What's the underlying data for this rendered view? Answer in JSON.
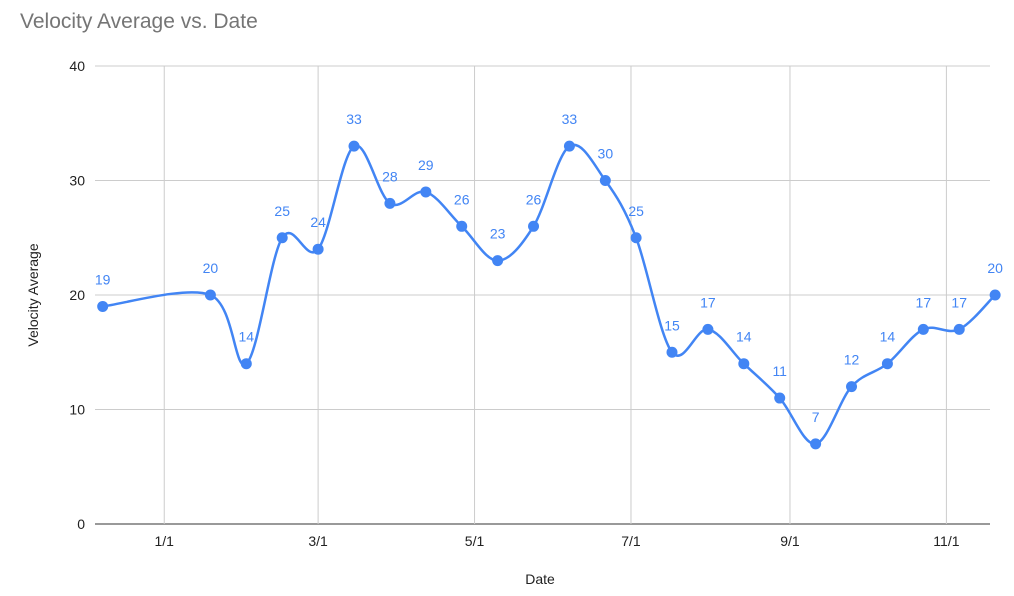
{
  "chart_data": {
    "type": "line",
    "title": "Velocity Average vs. Date",
    "xlabel": "Date",
    "ylabel": "Velocity Average",
    "ylim": [
      0,
      40
    ],
    "y_ticks": [
      0,
      10,
      20,
      30,
      40
    ],
    "x_ticks": [
      {
        "date": "2020-01-01",
        "label": "1/1"
      },
      {
        "date": "2020-03-01",
        "label": "3/1"
      },
      {
        "date": "2020-05-01",
        "label": "5/1"
      },
      {
        "date": "2020-07-01",
        "label": "7/1"
      },
      {
        "date": "2020-09-01",
        "label": "9/1"
      },
      {
        "date": "2020-11-01",
        "label": "11/1"
      }
    ],
    "x_range": [
      "2019-12-05",
      "2020-11-18"
    ],
    "grid": true,
    "legend": "none",
    "series": [
      {
        "color": "#4285f4",
        "smooth": true,
        "data_labels": true,
        "points": [
          {
            "x": "2019-12-08",
            "y": 19
          },
          {
            "x": "2020-01-19",
            "y": 20
          },
          {
            "x": "2020-02-02",
            "y": 14
          },
          {
            "x": "2020-02-16",
            "y": 25
          },
          {
            "x": "2020-03-01",
            "y": 24
          },
          {
            "x": "2020-03-15",
            "y": 33
          },
          {
            "x": "2020-03-29",
            "y": 28
          },
          {
            "x": "2020-04-12",
            "y": 29
          },
          {
            "x": "2020-04-26",
            "y": 26
          },
          {
            "x": "2020-05-10",
            "y": 23
          },
          {
            "x": "2020-05-24",
            "y": 26
          },
          {
            "x": "2020-06-07",
            "y": 33
          },
          {
            "x": "2020-06-21",
            "y": 30
          },
          {
            "x": "2020-07-03",
            "y": 25
          },
          {
            "x": "2020-07-17",
            "y": 15
          },
          {
            "x": "2020-07-31",
            "y": 17
          },
          {
            "x": "2020-08-14",
            "y": 14
          },
          {
            "x": "2020-08-28",
            "y": 11
          },
          {
            "x": "2020-09-11",
            "y": 7
          },
          {
            "x": "2020-09-25",
            "y": 12
          },
          {
            "x": "2020-10-09",
            "y": 14
          },
          {
            "x": "2020-10-23",
            "y": 17
          },
          {
            "x": "2020-11-06",
            "y": 17
          },
          {
            "x": "2020-11-20",
            "y": 20
          }
        ]
      }
    ]
  }
}
